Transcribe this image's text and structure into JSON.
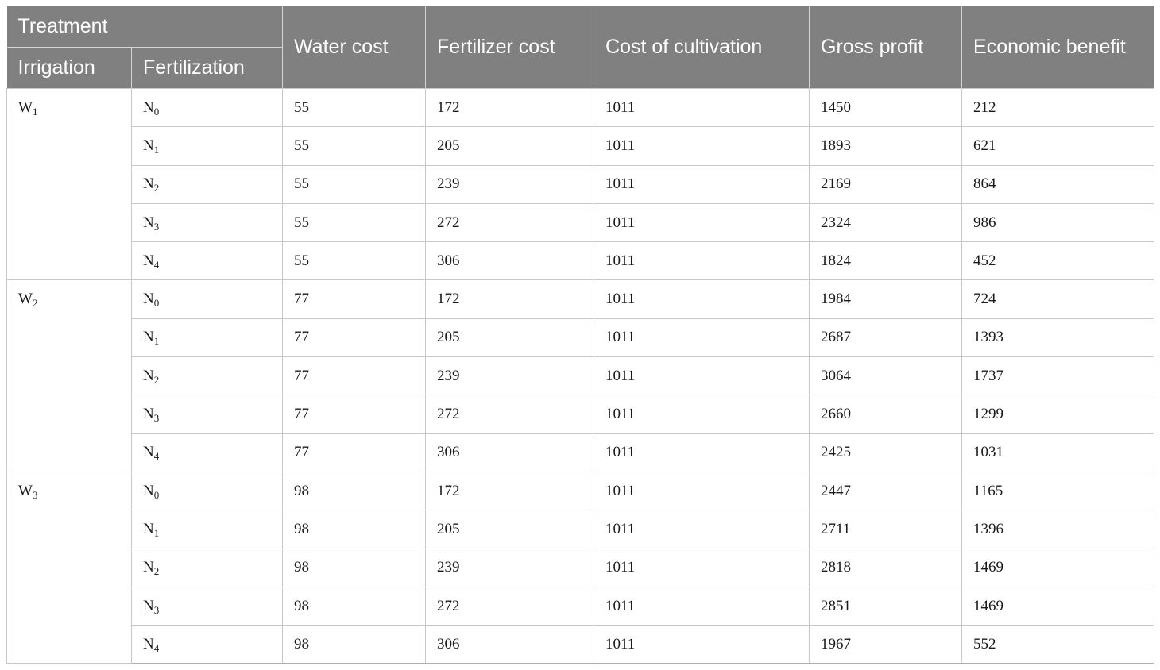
{
  "table": {
    "header": {
      "treatment": "Treatment",
      "irrigation": "Irrigation",
      "fertilization": "Fertilization",
      "water_cost": "Water cost",
      "fertilizer_cost": "Fertilizer cost",
      "cost_of_cultivation": "Cost of cultivation",
      "gross_profit": "Gross profit",
      "economic_benefit": "Economic benefit"
    },
    "groups": [
      {
        "irrigation": {
          "base": "W",
          "sub": "1"
        },
        "rows": [
          {
            "fert": {
              "base": "N",
              "sub": "0"
            },
            "water_cost": "55",
            "fertilizer_cost": "172",
            "cost_of_cultivation": "1011",
            "gross_profit": "1450",
            "economic_benefit": "212"
          },
          {
            "fert": {
              "base": "N",
              "sub": "1"
            },
            "water_cost": "55",
            "fertilizer_cost": "205",
            "cost_of_cultivation": "1011",
            "gross_profit": "1893",
            "economic_benefit": "621"
          },
          {
            "fert": {
              "base": "N",
              "sub": "2"
            },
            "water_cost": "55",
            "fertilizer_cost": "239",
            "cost_of_cultivation": "1011",
            "gross_profit": "2169",
            "economic_benefit": "864"
          },
          {
            "fert": {
              "base": "N",
              "sub": "3"
            },
            "water_cost": "55",
            "fertilizer_cost": "272",
            "cost_of_cultivation": "1011",
            "gross_profit": "2324",
            "economic_benefit": "986"
          },
          {
            "fert": {
              "base": "N",
              "sub": "4"
            },
            "water_cost": "55",
            "fertilizer_cost": "306",
            "cost_of_cultivation": "1011",
            "gross_profit": "1824",
            "economic_benefit": "452"
          }
        ]
      },
      {
        "irrigation": {
          "base": "W",
          "sub": "2"
        },
        "rows": [
          {
            "fert": {
              "base": "N",
              "sub": "0"
            },
            "water_cost": "77",
            "fertilizer_cost": "172",
            "cost_of_cultivation": "1011",
            "gross_profit": "1984",
            "economic_benefit": "724"
          },
          {
            "fert": {
              "base": "N",
              "sub": "1"
            },
            "water_cost": "77",
            "fertilizer_cost": "205",
            "cost_of_cultivation": "1011",
            "gross_profit": "2687",
            "economic_benefit": "1393"
          },
          {
            "fert": {
              "base": "N",
              "sub": "2"
            },
            "water_cost": "77",
            "fertilizer_cost": "239",
            "cost_of_cultivation": "1011",
            "gross_profit": "3064",
            "economic_benefit": "1737"
          },
          {
            "fert": {
              "base": "N",
              "sub": "3"
            },
            "water_cost": "77",
            "fertilizer_cost": "272",
            "cost_of_cultivation": "1011",
            "gross_profit": "2660",
            "economic_benefit": "1299"
          },
          {
            "fert": {
              "base": "N",
              "sub": "4"
            },
            "water_cost": "77",
            "fertilizer_cost": "306",
            "cost_of_cultivation": "1011",
            "gross_profit": "2425",
            "economic_benefit": "1031"
          }
        ]
      },
      {
        "irrigation": {
          "base": "W",
          "sub": "3"
        },
        "rows": [
          {
            "fert": {
              "base": "N",
              "sub": "0"
            },
            "water_cost": "98",
            "fertilizer_cost": "172",
            "cost_of_cultivation": "1011",
            "gross_profit": "2447",
            "economic_benefit": "1165"
          },
          {
            "fert": {
              "base": "N",
              "sub": "1"
            },
            "water_cost": "98",
            "fertilizer_cost": "205",
            "cost_of_cultivation": "1011",
            "gross_profit": "2711",
            "economic_benefit": "1396"
          },
          {
            "fert": {
              "base": "N",
              "sub": "2"
            },
            "water_cost": "98",
            "fertilizer_cost": "239",
            "cost_of_cultivation": "1011",
            "gross_profit": "2818",
            "economic_benefit": "1469"
          },
          {
            "fert": {
              "base": "N",
              "sub": "3"
            },
            "water_cost": "98",
            "fertilizer_cost": "272",
            "cost_of_cultivation": "1011",
            "gross_profit": "2851",
            "economic_benefit": "1469"
          },
          {
            "fert": {
              "base": "N",
              "sub": "4"
            },
            "water_cost": "98",
            "fertilizer_cost": "306",
            "cost_of_cultivation": "1011",
            "gross_profit": "1967",
            "economic_benefit": "552"
          }
        ]
      }
    ]
  }
}
